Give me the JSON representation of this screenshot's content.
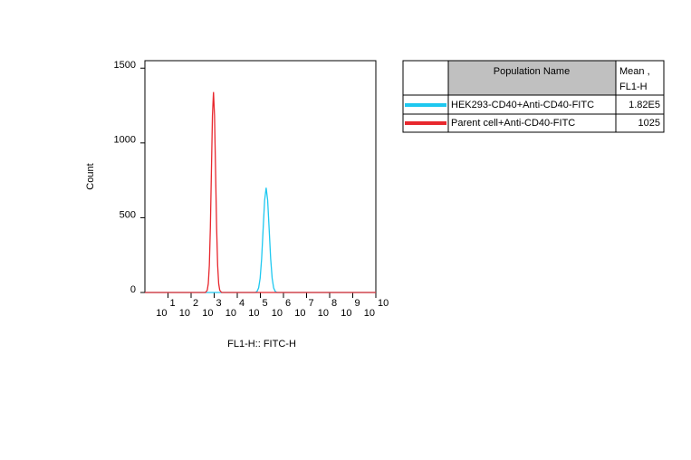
{
  "chart_data": {
    "type": "line",
    "y_label": "Count",
    "x_label": "FL1-H:: FITC-H",
    "xscale": "log",
    "xlim": [
      1,
      10000000000
    ],
    "ylim": [
      0,
      1550
    ],
    "yticks": [
      0,
      500,
      1000,
      1500
    ],
    "xticks": [
      {
        "value": 10,
        "label": "10",
        "exponent": "1"
      },
      {
        "value": 100,
        "label": "10",
        "exponent": "2"
      },
      {
        "value": 1000,
        "label": "10",
        "exponent": "3"
      },
      {
        "value": 10000,
        "label": "10",
        "exponent": "4"
      },
      {
        "value": 100000,
        "label": "10",
        "exponent": "5"
      },
      {
        "value": 1000000,
        "label": "10",
        "exponent": "6"
      },
      {
        "value": 10000000,
        "label": "10",
        "exponent": "7"
      },
      {
        "value": 100000000,
        "label": "10",
        "exponent": "8"
      },
      {
        "value": 1000000000,
        "label": "10",
        "exponent": "9"
      },
      {
        "value": 10000000000,
        "label": "10",
        "exponent": "10"
      }
    ],
    "table_header": [
      "Population Name",
      "Mean ,",
      "FL1-H"
    ],
    "series": [
      {
        "name": "HEK293-CD40+Anti-CD40-FITC",
        "color": "#1ec8f0",
        "mean": "1.82E5",
        "x": [
          1,
          60000,
          72444,
          84140,
          97724,
          113501,
          131826,
          153109,
          177828,
          206538,
          239883,
          278612,
          323594,
          375837,
          436516,
          520000,
          10000000000
        ],
        "values": [
          0,
          0,
          8,
          31,
          95,
          227,
          425,
          617,
          700,
          617,
          425,
          227,
          95,
          31,
          8,
          0,
          0
        ]
      },
      {
        "name": "Parent cell+Anti-CD40-FITC",
        "color": "#e8282e",
        "mean": "1025",
        "x": [
          1,
          420,
          501,
          556,
          617,
          684,
          759,
          841,
          933,
          1035,
          1148,
          1274,
          1413,
          1567,
          1738,
          2100,
          10000000000
        ],
        "values": [
          0,
          0,
          15,
          59,
          181,
          435,
          813,
          1182,
          1340,
          1182,
          813,
          435,
          181,
          59,
          15,
          0,
          0
        ]
      }
    ]
  }
}
